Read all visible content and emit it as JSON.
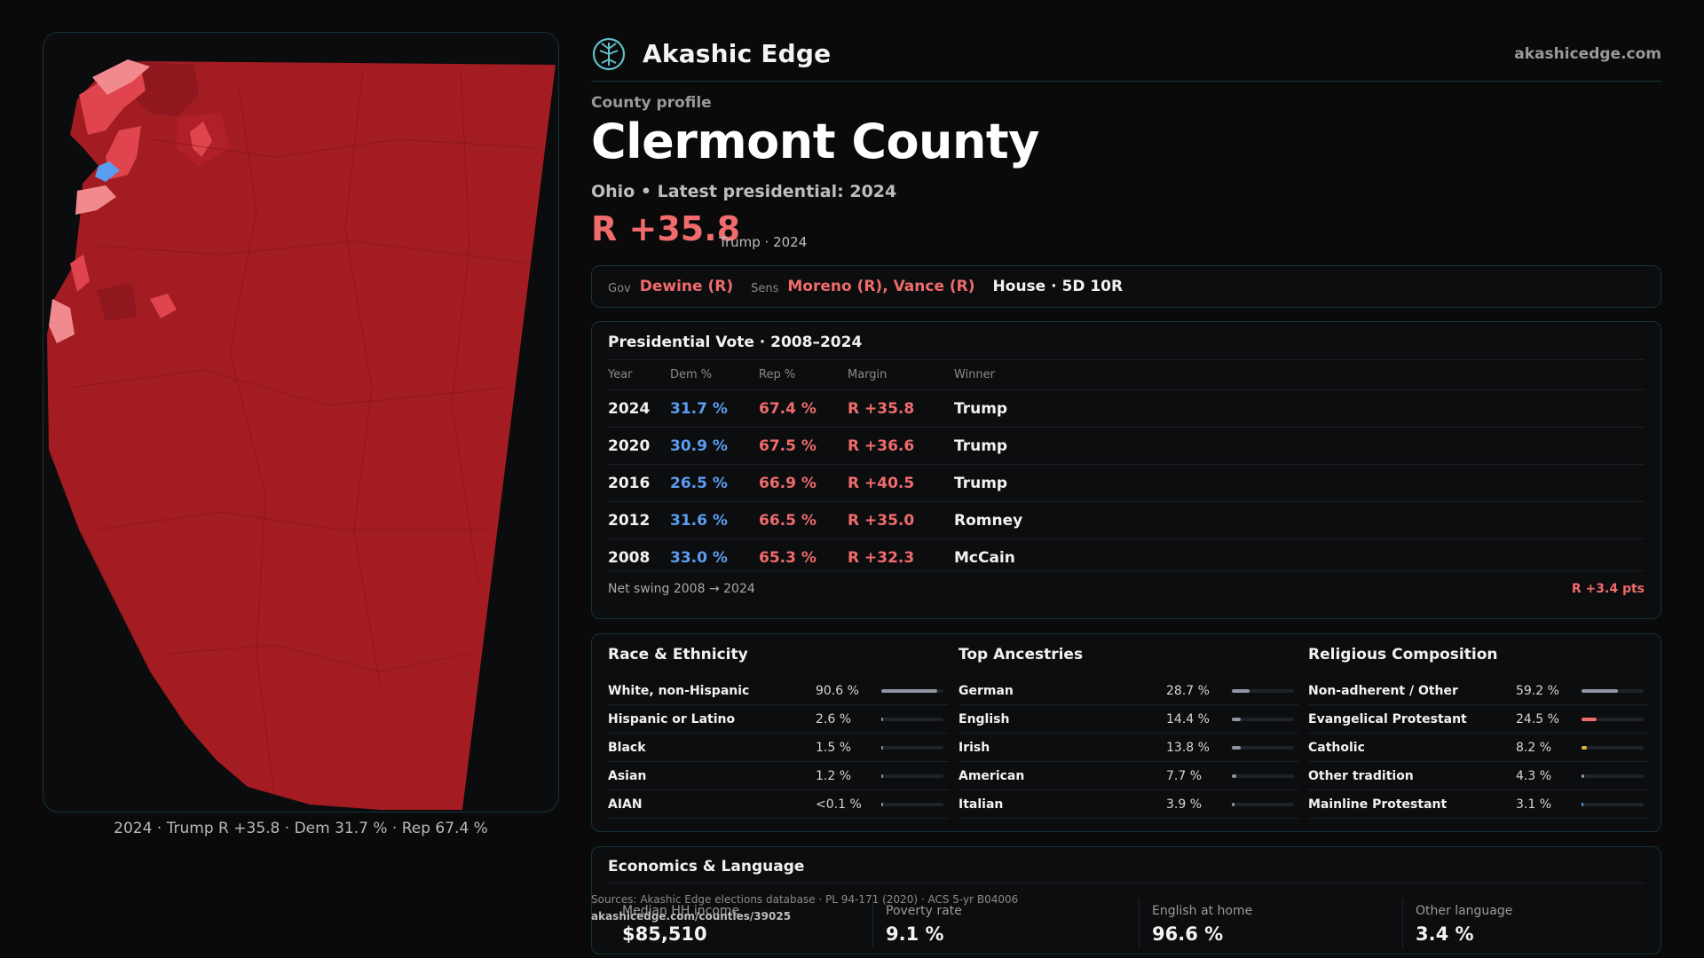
{
  "header": {
    "brand": "Akashic Edge",
    "site": "akashicedge.com",
    "logo_icon": "tree-globe-icon"
  },
  "profile": {
    "label": "County profile",
    "county": "Clermont County",
    "state_line": "Ohio • Latest presidential: 2024",
    "margin": "R +35.8",
    "margin_sub": "Trump · 2024"
  },
  "officials": {
    "gov_label": "Gov",
    "gov": "Dewine (R)",
    "sens_label": "Sens",
    "sens": "Moreno (R), Vance (R)",
    "house": "House · 5D 10R"
  },
  "votes": {
    "title": "Presidential Vote · 2008–2024",
    "columns": [
      "Year",
      "Dem %",
      "Rep %",
      "Margin",
      "Winner"
    ],
    "rows": [
      {
        "year": "2024",
        "dem": "31.7 %",
        "rep": "67.4 %",
        "margin": "R +35.8",
        "winner": "Trump"
      },
      {
        "year": "2020",
        "dem": "30.9 %",
        "rep": "67.5 %",
        "margin": "R +36.6",
        "winner": "Trump"
      },
      {
        "year": "2016",
        "dem": "26.5 %",
        "rep": "66.9 %",
        "margin": "R +40.5",
        "winner": "Trump"
      },
      {
        "year": "2012",
        "dem": "31.6 %",
        "rep": "66.5 %",
        "margin": "R +35.0",
        "winner": "Romney"
      },
      {
        "year": "2008",
        "dem": "33.0 %",
        "rep": "65.3 %",
        "margin": "R +32.3",
        "winner": "McCain"
      }
    ],
    "swing_label": "Net swing 2008 → 2024",
    "swing_value": "R +3.4 pts"
  },
  "race": {
    "title": "Race & Ethnicity",
    "color": "#8f96a3",
    "items": [
      {
        "name": "White, non-Hispanic",
        "pct": "90.6 %",
        "value": 90.6
      },
      {
        "name": "Hispanic or Latino",
        "pct": "2.6 %",
        "value": 2.6
      },
      {
        "name": "Black",
        "pct": "1.5 %",
        "value": 1.5
      },
      {
        "name": "Asian",
        "pct": "1.2 %",
        "value": 1.2
      },
      {
        "name": "AIAN",
        "pct": "<0.1 %",
        "value": 0.1
      }
    ]
  },
  "ancestry": {
    "title": "Top Ancestries",
    "color": "#8f96a3",
    "items": [
      {
        "name": "German",
        "pct": "28.7 %",
        "value": 28.7
      },
      {
        "name": "English",
        "pct": "14.4 %",
        "value": 14.4
      },
      {
        "name": "Irish",
        "pct": "13.8 %",
        "value": 13.8
      },
      {
        "name": "American",
        "pct": "7.7 %",
        "value": 7.7
      },
      {
        "name": "Italian",
        "pct": "3.9 %",
        "value": 3.9
      }
    ]
  },
  "religion": {
    "title": "Religious Composition",
    "items": [
      {
        "name": "Non-adherent / Other",
        "pct": "59.2 %",
        "value": 59.2,
        "color": "#8f96a3"
      },
      {
        "name": "Evangelical Protestant",
        "pct": "24.5 %",
        "value": 24.5,
        "color": "#f06b6b"
      },
      {
        "name": "Catholic",
        "pct": "8.2 %",
        "value": 8.2,
        "color": "#e0b040"
      },
      {
        "name": "Other tradition",
        "pct": "4.3 %",
        "value": 4.3,
        "color": "#8f96a3"
      },
      {
        "name": "Mainline Protestant",
        "pct": "3.1 %",
        "value": 3.1,
        "color": "#5b9df0"
      }
    ]
  },
  "econ": {
    "title": "Economics & Language",
    "items": [
      {
        "label": "Median HH income",
        "value": "$85,510"
      },
      {
        "label": "Poverty rate",
        "value": "9.1 %"
      },
      {
        "label": "English at home",
        "value": "96.6 %"
      },
      {
        "label": "Other language",
        "value": "3.4 %"
      }
    ]
  },
  "sources": {
    "line1": "Sources: Akashic Edge elections database · PL 94-171 (2020) · ACS 5-yr B04006",
    "line2": "akashicedge.com/counties/39025"
  },
  "map": {
    "caption": "2024 · Trump  R +35.8 · Dem 31.7 % · Rep 67.4 %",
    "colors": {
      "base": "#a31c22",
      "dark": "#8e181d",
      "light": "#e0454d",
      "pale": "#f08a8f",
      "dem": "#5b9df0"
    }
  }
}
